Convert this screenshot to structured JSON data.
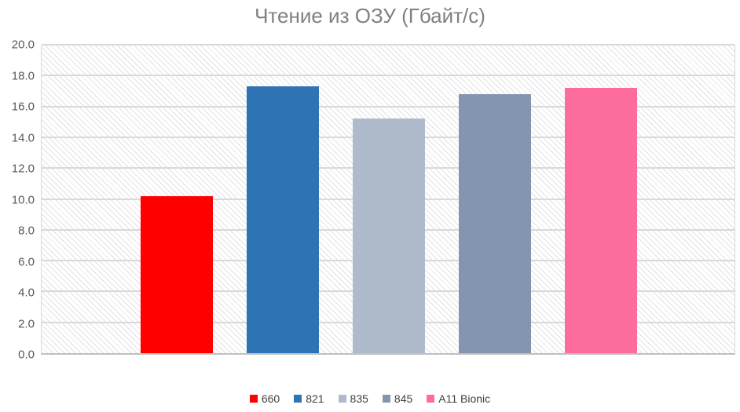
{
  "chart_data": {
    "type": "bar",
    "title": "Чтение из ОЗУ (Гбайт/с)",
    "categories": [
      ""
    ],
    "series": [
      {
        "name": "660",
        "values": [
          10.2
        ],
        "color": "#FF0000"
      },
      {
        "name": "821",
        "values": [
          17.3
        ],
        "color": "#2E74B5"
      },
      {
        "name": "835",
        "values": [
          15.2
        ],
        "color": "#AFBACB"
      },
      {
        "name": "845",
        "values": [
          16.8
        ],
        "color": "#8496AF"
      },
      {
        "name": "A11 Bionic",
        "values": [
          17.2
        ],
        "color": "#FC6C9D"
      }
    ],
    "xlabel": "",
    "ylabel": "",
    "ylim": [
      0,
      20
    ],
    "ytick_step": 2,
    "ytick_labels": [
      "0.0",
      "2.0",
      "4.0",
      "6.0",
      "8.0",
      "10.0",
      "12.0",
      "14.0",
      "16.0",
      "18.0",
      "20.0"
    ],
    "grid": true,
    "legend_position": "bottom",
    "plot_background": "light-downward-diagonal-hatch"
  },
  "colors": {
    "title_text": "#808080",
    "axis_text": "#595959",
    "legend_text": "#404040",
    "gridline": "#D9D9D9",
    "axis_line": "#BFBFBF",
    "hatch_line": "#E2E2E6",
    "background": "#FFFFFF"
  }
}
